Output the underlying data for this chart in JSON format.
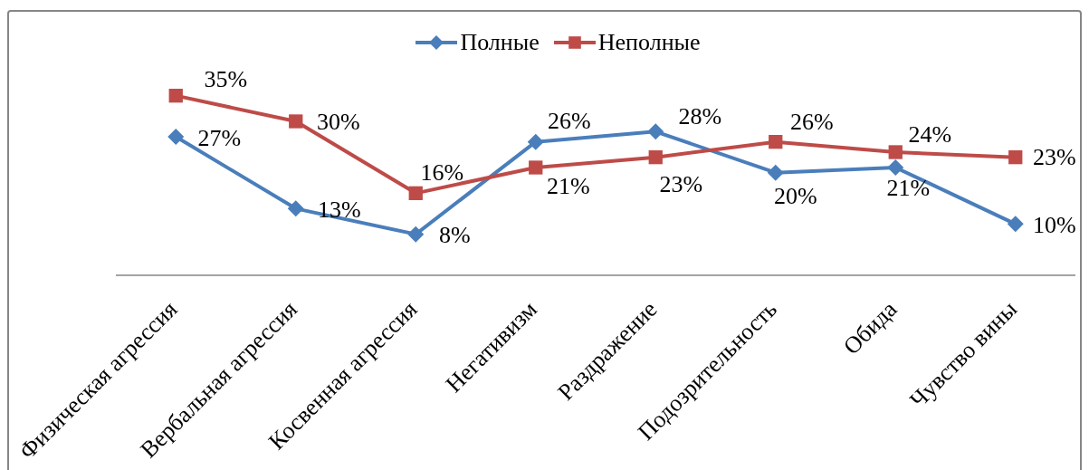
{
  "chart_data": {
    "type": "line",
    "categories": [
      "Физическая агрессия",
      "Вербальная агрессия",
      "Косвенная агрессия",
      "Негативизм",
      "Раздражение",
      "Подозрительность",
      "Обида",
      "Чувство вины"
    ],
    "series": [
      {
        "name": "Полные",
        "color": "#4a7ebb",
        "marker": "diamond",
        "values": [
          27,
          13,
          8,
          26,
          28,
          20,
          21,
          10
        ],
        "value_labels": [
          "27%",
          "13%",
          "8%",
          "26%",
          "28%",
          "20%",
          "21%",
          "10%"
        ]
      },
      {
        "name": "Неполные",
        "color": "#be4b48",
        "marker": "square",
        "values": [
          35,
          30,
          16,
          21,
          23,
          26,
          24,
          23
        ],
        "value_labels": [
          "35%",
          "30%",
          "16%",
          "21%",
          "23%",
          "26%",
          "24%",
          "23%"
        ]
      }
    ],
    "legend": "top",
    "tick_labels": "x"
  }
}
